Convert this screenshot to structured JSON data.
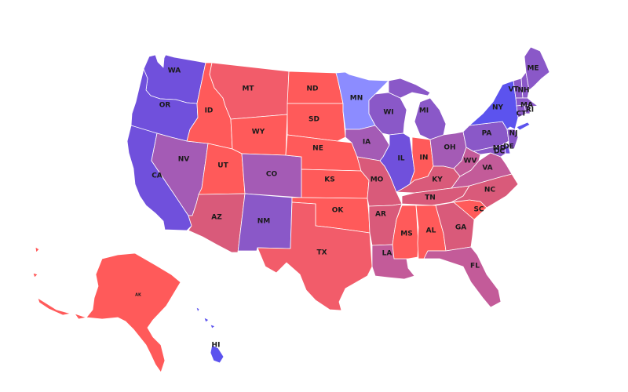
{
  "palette": {
    "red": "#ff5a5a",
    "red_pink": "#f25c6a",
    "pink": "#d95a7a",
    "magenta": "#c35b99",
    "purple": "#a45bb5",
    "violet": "#8a58c8",
    "blue_violet": "#7050dc",
    "blue": "#5c53ee",
    "light_blue": "#8c8cff",
    "border": "#ffffff"
  },
  "states": [
    {
      "id": "WA",
      "label": "WA",
      "color": "blue_violet"
    },
    {
      "id": "OR",
      "label": "OR",
      "color": "blue_violet"
    },
    {
      "id": "CA",
      "label": "CA",
      "color": "blue_violet"
    },
    {
      "id": "NV",
      "label": "NV",
      "color": "purple"
    },
    {
      "id": "ID",
      "label": "ID",
      "color": "red"
    },
    {
      "id": "MT",
      "label": "MT",
      "color": "red_pink"
    },
    {
      "id": "WY",
      "label": "WY",
      "color": "red"
    },
    {
      "id": "UT",
      "label": "UT",
      "color": "red"
    },
    {
      "id": "AZ",
      "label": "AZ",
      "color": "pink"
    },
    {
      "id": "CO",
      "label": "CO",
      "color": "purple"
    },
    {
      "id": "NM",
      "label": "NM",
      "color": "violet"
    },
    {
      "id": "ND",
      "label": "ND",
      "color": "red"
    },
    {
      "id": "SD",
      "label": "SD",
      "color": "red"
    },
    {
      "id": "NE",
      "label": "NE",
      "color": "red"
    },
    {
      "id": "KS",
      "label": "KS",
      "color": "red"
    },
    {
      "id": "OK",
      "label": "OK",
      "color": "red"
    },
    {
      "id": "TX",
      "label": "TX",
      "color": "red_pink"
    },
    {
      "id": "MN",
      "label": "MN",
      "color": "light_blue"
    },
    {
      "id": "IA",
      "label": "IA",
      "color": "purple"
    },
    {
      "id": "MO",
      "label": "MO",
      "color": "pink"
    },
    {
      "id": "AR",
      "label": "AR",
      "color": "pink"
    },
    {
      "id": "LA",
      "label": "LA",
      "color": "magenta"
    },
    {
      "id": "WI",
      "label": "WI",
      "color": "violet"
    },
    {
      "id": "IL",
      "label": "IL",
      "color": "blue_violet"
    },
    {
      "id": "MI",
      "label": "MI",
      "color": "violet"
    },
    {
      "id": "IN",
      "label": "IN",
      "color": "red"
    },
    {
      "id": "OH",
      "label": "OH",
      "color": "purple"
    },
    {
      "id": "KY",
      "label": "KY",
      "color": "pink"
    },
    {
      "id": "TN",
      "label": "TN",
      "color": "pink"
    },
    {
      "id": "MS",
      "label": "MS",
      "color": "red"
    },
    {
      "id": "AL",
      "label": "AL",
      "color": "red"
    },
    {
      "id": "GA",
      "label": "GA",
      "color": "pink"
    },
    {
      "id": "FL",
      "label": "FL",
      "color": "magenta"
    },
    {
      "id": "SC",
      "label": "SC",
      "color": "red"
    },
    {
      "id": "NC",
      "label": "NC",
      "color": "pink"
    },
    {
      "id": "VA",
      "label": "VA",
      "color": "magenta"
    },
    {
      "id": "WV",
      "label": "WV",
      "color": "magenta"
    },
    {
      "id": "PA",
      "label": "PA",
      "color": "violet"
    },
    {
      "id": "NY",
      "label": "NY",
      "color": "blue"
    },
    {
      "id": "VT",
      "label": "VT",
      "color": "violet"
    },
    {
      "id": "NH",
      "label": "NH",
      "color": "violet"
    },
    {
      "id": "ME",
      "label": "ME",
      "color": "violet"
    },
    {
      "id": "MA",
      "label": "MA",
      "color": "violet"
    },
    {
      "id": "CT",
      "label": "CT",
      "color": "violet"
    },
    {
      "id": "RI",
      "label": "RI",
      "color": "violet"
    },
    {
      "id": "NJ",
      "label": "NJ",
      "color": "violet"
    },
    {
      "id": "DE",
      "label": "DE",
      "color": "blue_violet"
    },
    {
      "id": "MD",
      "label": "MD",
      "color": "violet"
    },
    {
      "id": "DC",
      "label": "DC",
      "color": "blue"
    },
    {
      "id": "AK",
      "label": "AK",
      "color": "red"
    },
    {
      "id": "HI",
      "label": "HI",
      "color": "blue"
    }
  ]
}
